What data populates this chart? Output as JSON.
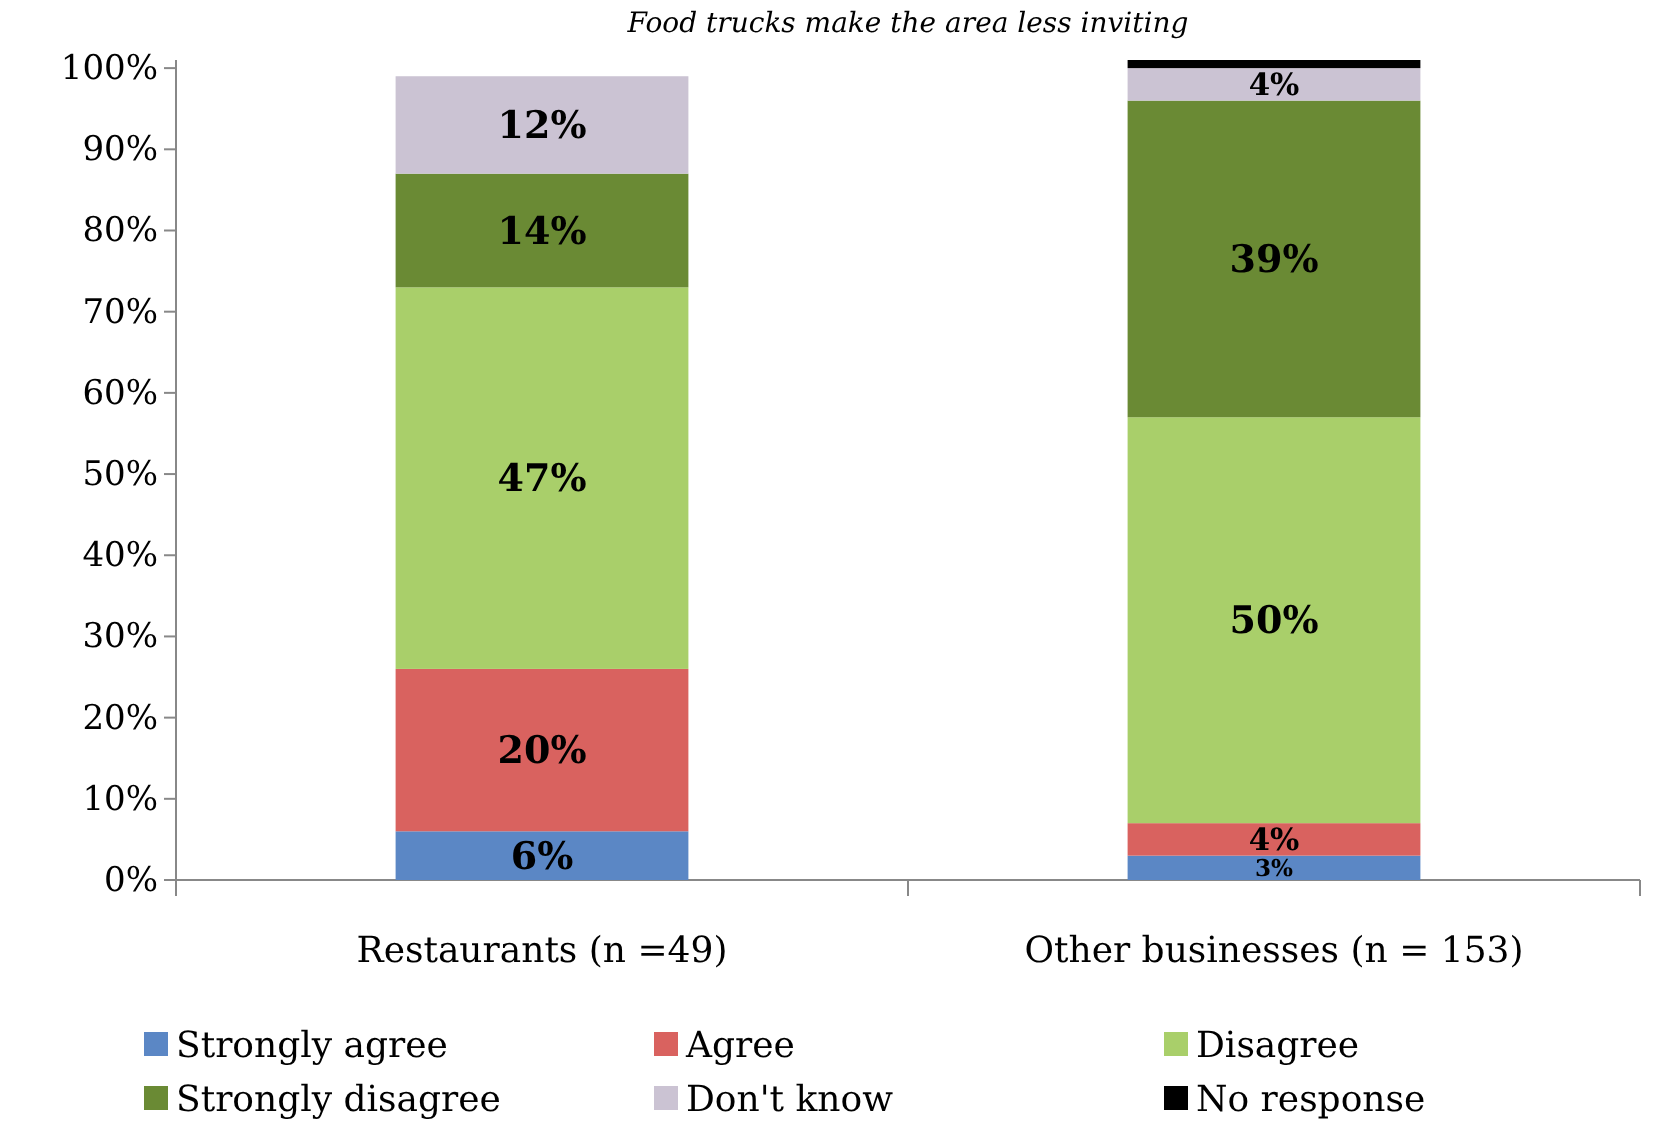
{
  "chart_data": {
    "type": "bar",
    "stacked": true,
    "title": "Food trucks make the area less inviting",
    "categories": [
      "Restaurants (n =49)",
      "Other businesses (n = 153)"
    ],
    "series": [
      {
        "name": "Strongly agree",
        "color": "#5b87c5",
        "values": [
          6,
          3
        ],
        "value_labels": [
          "6%",
          "3%"
        ]
      },
      {
        "name": "Agree",
        "color": "#d9625f",
        "values": [
          20,
          4
        ],
        "value_labels": [
          "20%",
          "4%"
        ]
      },
      {
        "name": "Disagree",
        "color": "#a9cf6a",
        "values": [
          47,
          50
        ],
        "value_labels": [
          "47%",
          "50%"
        ]
      },
      {
        "name": "Strongly disagree",
        "color": "#6a8a34",
        "values": [
          14,
          39
        ],
        "value_labels": [
          "14%",
          "39%"
        ]
      },
      {
        "name": "Don't know",
        "color": "#cbc3d3",
        "values": [
          12,
          4
        ],
        "value_labels": [
          "12%",
          "4%"
        ]
      },
      {
        "name": "No response",
        "color": "#000000",
        "values": [
          null,
          1
        ],
        "value_labels": [
          null,
          null
        ]
      }
    ],
    "ylim": [
      0,
      101
    ],
    "yticks": [
      {
        "value": 0,
        "label": "0%"
      },
      {
        "value": 10,
        "label": "10%"
      },
      {
        "value": 20,
        "label": "20%"
      },
      {
        "value": 30,
        "label": "30%"
      },
      {
        "value": 40,
        "label": "40%"
      },
      {
        "value": 50,
        "label": "50%"
      },
      {
        "value": 60,
        "label": "60%"
      },
      {
        "value": 70,
        "label": "70%"
      },
      {
        "value": 80,
        "label": "80%"
      },
      {
        "value": 90,
        "label": "90%"
      },
      {
        "value": 100,
        "label": "100%"
      }
    ],
    "legend": "bottom"
  }
}
